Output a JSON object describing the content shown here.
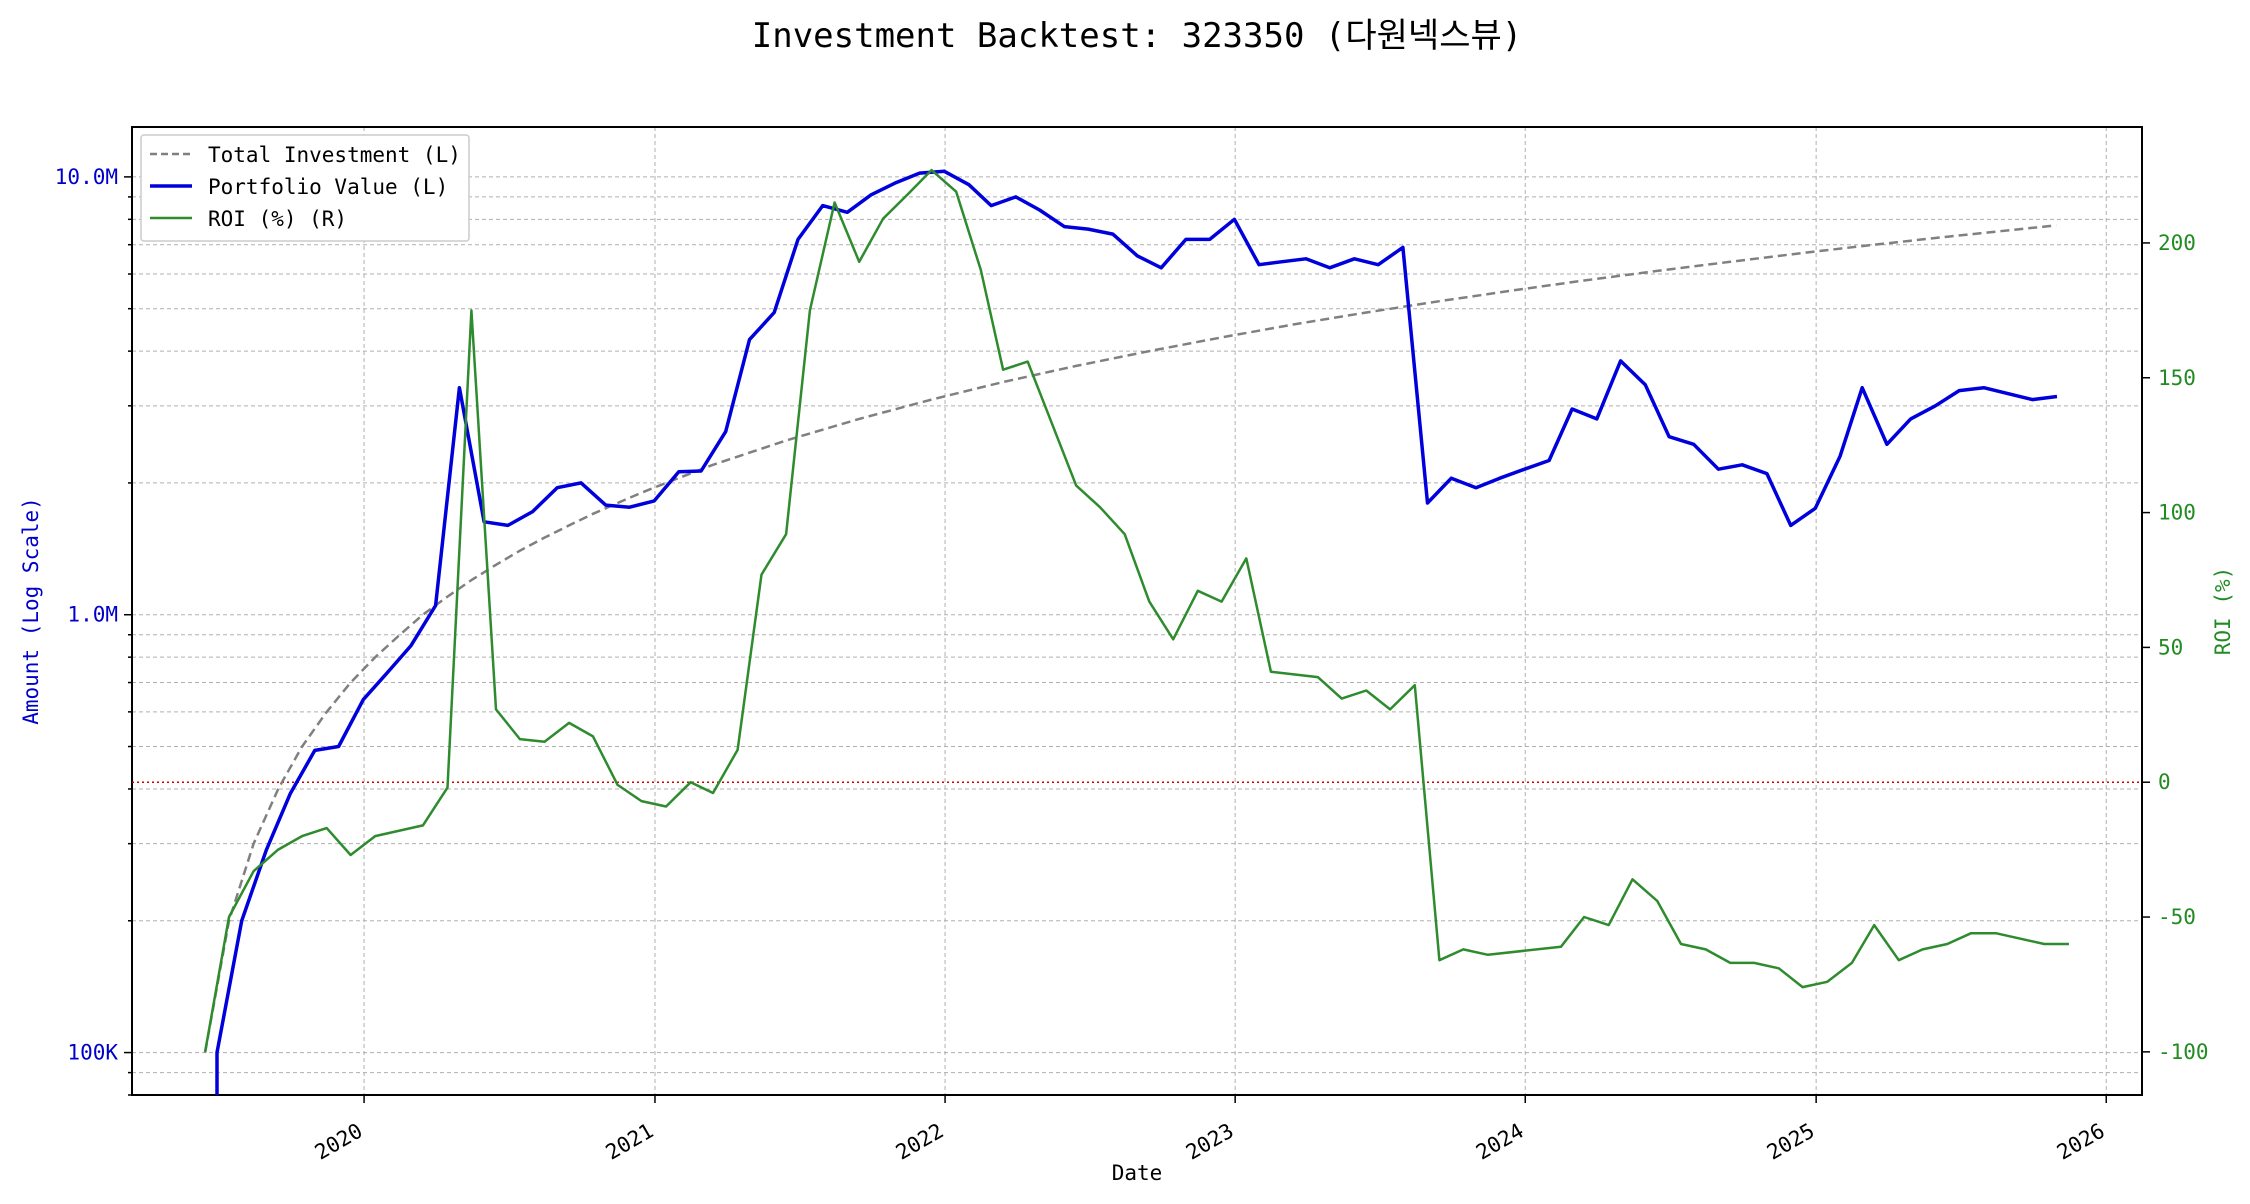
{
  "chart_data": {
    "type": "line",
    "title": "Investment Backtest: 323350 (다원넥스뷰)",
    "xlabel": "Date",
    "ylabel_left": "Amount (Log Scale)",
    "ylabel_right": "ROI (%)",
    "y_left_scale": "log",
    "y_left_range": [
      80000,
      13000000
    ],
    "y_right_range": [
      -116,
      243
    ],
    "x_range": [
      "2019-03-15",
      "2026-02-15"
    ],
    "x_ticks": [
      "2020",
      "2021",
      "2022",
      "2023",
      "2024",
      "2025",
      "2026"
    ],
    "y_left_ticks": [
      {
        "value": 100000,
        "label": "100K"
      },
      {
        "value": 1000000,
        "label": "1.0M"
      },
      {
        "value": 10000000,
        "label": "10.0M"
      }
    ],
    "y_right_ticks": [
      -100,
      -50,
      0,
      50,
      100,
      150,
      200
    ],
    "grid": true,
    "legend_position": "upper left",
    "colors": {
      "investment": "#808080",
      "portfolio": "#0000dd",
      "roi": "#2e8b2e",
      "zero_line": "#cc0000",
      "left_axis": "#0000cc",
      "right_axis": "#228b22"
    },
    "series": [
      {
        "name": "Total Investment (L)",
        "axis": "left",
        "style": "dashed",
        "points": [
          [
            "2019-06-15",
            100000
          ],
          [
            "2019-07-15",
            200000
          ],
          [
            "2019-08-15",
            300000
          ],
          [
            "2019-09-15",
            400000
          ],
          [
            "2019-10-15",
            500000
          ],
          [
            "2019-11-15",
            600000
          ],
          [
            "2019-12-15",
            700000
          ],
          [
            "2020-01-15",
            800000
          ],
          [
            "2020-02-15",
            900000
          ],
          [
            "2020-03-15",
            1000000
          ],
          [
            "2020-04-15",
            1100000
          ],
          [
            "2020-05-15",
            1200000
          ],
          [
            "2020-06-15",
            1300000
          ],
          [
            "2020-07-15",
            1400000
          ],
          [
            "2020-08-15",
            1500000
          ],
          [
            "2020-09-15",
            1600000
          ],
          [
            "2020-10-15",
            1700000
          ],
          [
            "2020-11-15",
            1800000
          ],
          [
            "2020-12-15",
            1900000
          ],
          [
            "2021-01-15",
            2000000
          ],
          [
            "2021-03-15",
            2200000
          ],
          [
            "2021-06-15",
            2500000
          ],
          [
            "2021-09-15",
            2800000
          ],
          [
            "2021-12-15",
            3100000
          ],
          [
            "2022-03-15",
            3400000
          ],
          [
            "2022-06-15",
            3700000
          ],
          [
            "2022-09-15",
            4000000
          ],
          [
            "2022-12-15",
            4300000
          ],
          [
            "2023-03-15",
            4600000
          ],
          [
            "2023-06-15",
            4900000
          ],
          [
            "2023-09-15",
            5200000
          ],
          [
            "2023-12-15",
            5500000
          ],
          [
            "2024-03-15",
            5800000
          ],
          [
            "2024-06-15",
            6100000
          ],
          [
            "2024-09-15",
            6400000
          ],
          [
            "2024-12-15",
            6700000
          ],
          [
            "2025-03-15",
            7000000
          ],
          [
            "2025-06-15",
            7300000
          ],
          [
            "2025-09-15",
            7600000
          ],
          [
            "2025-10-30",
            7750000
          ]
        ]
      },
      {
        "name": "Portfolio Value (L)",
        "axis": "left",
        "style": "solid",
        "points": [
          [
            "2019-06-30",
            60000
          ],
          [
            "2019-06-30",
            100000
          ],
          [
            "2019-07-31",
            200000
          ],
          [
            "2019-08-31",
            290000
          ],
          [
            "2019-09-30",
            390000
          ],
          [
            "2019-10-31",
            490000
          ],
          [
            "2019-11-30",
            500000
          ],
          [
            "2019-12-31",
            640000
          ],
          [
            "2020-01-31",
            740000
          ],
          [
            "2020-02-29",
            850000
          ],
          [
            "2020-03-31",
            1050000
          ],
          [
            "2020-04-30",
            3300000
          ],
          [
            "2020-05-31",
            1630000
          ],
          [
            "2020-06-30",
            1600000
          ],
          [
            "2020-07-31",
            1720000
          ],
          [
            "2020-08-31",
            1950000
          ],
          [
            "2020-09-30",
            2000000
          ],
          [
            "2020-10-31",
            1780000
          ],
          [
            "2020-11-30",
            1760000
          ],
          [
            "2020-12-31",
            1820000
          ],
          [
            "2021-01-31",
            2120000
          ],
          [
            "2021-02-28",
            2130000
          ],
          [
            "2021-03-31",
            2620000
          ],
          [
            "2021-04-30",
            4250000
          ],
          [
            "2021-05-31",
            4900000
          ],
          [
            "2021-06-30",
            7200000
          ],
          [
            "2021-07-31",
            8600000
          ],
          [
            "2021-08-31",
            8300000
          ],
          [
            "2021-09-30",
            9100000
          ],
          [
            "2021-10-31",
            9700000
          ],
          [
            "2021-11-30",
            10200000
          ],
          [
            "2021-12-31",
            10300000
          ],
          [
            "2022-01-31",
            9600000
          ],
          [
            "2022-02-28",
            8600000
          ],
          [
            "2022-03-31",
            9000000
          ],
          [
            "2022-04-30",
            8400000
          ],
          [
            "2022-05-31",
            7700000
          ],
          [
            "2022-06-30",
            7600000
          ],
          [
            "2022-07-31",
            7400000
          ],
          [
            "2022-08-31",
            6600000
          ],
          [
            "2022-09-30",
            6200000
          ],
          [
            "2022-10-31",
            7200000
          ],
          [
            "2022-11-30",
            7200000
          ],
          [
            "2022-12-31",
            8000000
          ],
          [
            "2023-01-31",
            6300000
          ],
          [
            "2023-02-28",
            6400000
          ],
          [
            "2023-03-31",
            6500000
          ],
          [
            "2023-04-30",
            6200000
          ],
          [
            "2023-05-31",
            6500000
          ],
          [
            "2023-06-30",
            6300000
          ],
          [
            "2023-07-31",
            6900000
          ],
          [
            "2023-08-31",
            1800000
          ],
          [
            "2023-09-30",
            2050000
          ],
          [
            "2023-10-31",
            1950000
          ],
          [
            "2023-11-30",
            2050000
          ],
          [
            "2023-12-31",
            2150000
          ],
          [
            "2024-01-31",
            2250000
          ],
          [
            "2024-02-29",
            2950000
          ],
          [
            "2024-03-31",
            2800000
          ],
          [
            "2024-04-30",
            3800000
          ],
          [
            "2024-05-31",
            3350000
          ],
          [
            "2024-06-30",
            2550000
          ],
          [
            "2024-07-31",
            2450000
          ],
          [
            "2024-08-31",
            2150000
          ],
          [
            "2024-09-30",
            2200000
          ],
          [
            "2024-10-31",
            2100000
          ],
          [
            "2024-11-30",
            1600000
          ],
          [
            "2024-12-31",
            1750000
          ],
          [
            "2025-01-31",
            2300000
          ],
          [
            "2025-02-28",
            3300000
          ],
          [
            "2025-03-31",
            2450000
          ],
          [
            "2025-04-30",
            2800000
          ],
          [
            "2025-05-31",
            3000000
          ],
          [
            "2025-06-30",
            3250000
          ],
          [
            "2025-07-31",
            3300000
          ],
          [
            "2025-09-30",
            3100000
          ],
          [
            "2025-10-31",
            3150000
          ]
        ]
      },
      {
        "name": "ROI (%) (R)",
        "axis": "right",
        "style": "solid",
        "points": [
          [
            "2019-06-15",
            -100
          ],
          [
            "2019-07-15",
            -50
          ],
          [
            "2019-08-15",
            -33
          ],
          [
            "2019-09-15",
            -25
          ],
          [
            "2019-10-15",
            -20
          ],
          [
            "2019-11-15",
            -17
          ],
          [
            "2019-12-15",
            -27
          ],
          [
            "2020-01-15",
            -20
          ],
          [
            "2020-03-15",
            -16
          ],
          [
            "2020-04-15",
            -2
          ],
          [
            "2020-05-15",
            175
          ],
          [
            "2020-06-15",
            27
          ],
          [
            "2020-07-15",
            16
          ],
          [
            "2020-08-15",
            15
          ],
          [
            "2020-09-15",
            22
          ],
          [
            "2020-10-15",
            17
          ],
          [
            "2020-11-15",
            -1
          ],
          [
            "2020-12-15",
            -7
          ],
          [
            "2021-01-15",
            -9
          ],
          [
            "2021-02-15",
            0
          ],
          [
            "2021-03-15",
            -4
          ],
          [
            "2021-04-15",
            12
          ],
          [
            "2021-05-15",
            77
          ],
          [
            "2021-06-15",
            92
          ],
          [
            "2021-07-15",
            175
          ],
          [
            "2021-08-15",
            215
          ],
          [
            "2021-09-15",
            193
          ],
          [
            "2021-10-15",
            209
          ],
          [
            "2021-11-15",
            218
          ],
          [
            "2021-12-15",
            227
          ],
          [
            "2022-01-15",
            219
          ],
          [
            "2022-02-15",
            190
          ],
          [
            "2022-03-15",
            153
          ],
          [
            "2022-04-15",
            156
          ],
          [
            "2022-06-15",
            110
          ],
          [
            "2022-07-15",
            102
          ],
          [
            "2022-08-15",
            92
          ],
          [
            "2022-09-15",
            67
          ],
          [
            "2022-10-15",
            53
          ],
          [
            "2022-11-15",
            71
          ],
          [
            "2022-12-15",
            67
          ],
          [
            "2023-01-15",
            83
          ],
          [
            "2023-02-15",
            41
          ],
          [
            "2023-04-15",
            39
          ],
          [
            "2023-05-15",
            31
          ],
          [
            "2023-06-15",
            34
          ],
          [
            "2023-07-15",
            27
          ],
          [
            "2023-08-15",
            36
          ],
          [
            "2023-09-15",
            -66
          ],
          [
            "2023-10-15",
            -62
          ],
          [
            "2023-11-15",
            -64
          ],
          [
            "2024-02-15",
            -61
          ],
          [
            "2024-03-15",
            -50
          ],
          [
            "2024-04-15",
            -53
          ],
          [
            "2024-05-15",
            -36
          ],
          [
            "2024-06-15",
            -44
          ],
          [
            "2024-07-15",
            -60
          ],
          [
            "2024-08-15",
            -62
          ],
          [
            "2024-09-15",
            -67
          ],
          [
            "2024-10-15",
            -67
          ],
          [
            "2024-11-15",
            -69
          ],
          [
            "2024-12-15",
            -76
          ],
          [
            "2025-01-15",
            -74
          ],
          [
            "2025-02-15",
            -67
          ],
          [
            "2025-03-15",
            -53
          ],
          [
            "2025-04-15",
            -66
          ],
          [
            "2025-05-15",
            -62
          ],
          [
            "2025-06-15",
            -60
          ],
          [
            "2025-07-15",
            -56
          ],
          [
            "2025-08-15",
            -56
          ],
          [
            "2025-10-15",
            -60
          ],
          [
            "2025-11-15",
            -60
          ]
        ]
      }
    ],
    "reference_lines": [
      {
        "axis": "right",
        "value": 0,
        "style": "dotted"
      }
    ]
  }
}
